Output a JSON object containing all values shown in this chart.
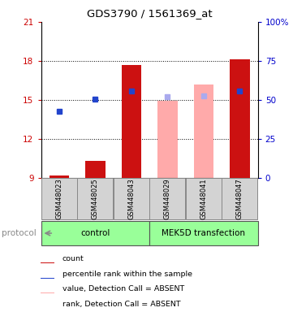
{
  "title": "GDS3790 / 1561369_at",
  "samples": [
    "GSM448023",
    "GSM448025",
    "GSM448043",
    "GSM448029",
    "GSM448041",
    "GSM448047"
  ],
  "group_labels": [
    "control",
    "MEK5D transfection"
  ],
  "ylim_left": [
    9,
    21
  ],
  "ylim_right": [
    0,
    100
  ],
  "yticks_left": [
    9,
    12,
    15,
    18,
    21
  ],
  "yticks_right": [
    0,
    25,
    50,
    75,
    100
  ],
  "ybase": 9,
  "red_bar_values": [
    9.15,
    10.3,
    17.7,
    null,
    null,
    18.1
  ],
  "blue_square_values": [
    14.1,
    15.05,
    15.65,
    null,
    null,
    15.7
  ],
  "pink_bar_values": [
    null,
    null,
    null,
    14.9,
    16.2,
    null
  ],
  "light_blue_square_values": [
    null,
    null,
    null,
    15.25,
    15.3,
    null
  ],
  "red_bar_color": "#cc1111",
  "blue_square_color": "#2244cc",
  "pink_bar_color": "#ffaaaa",
  "light_blue_square_color": "#aaaaee",
  "bar_width": 0.55,
  "label_color_left": "#cc0000",
  "label_color_right": "#0000cc",
  "legend_items": [
    "count",
    "percentile rank within the sample",
    "value, Detection Call = ABSENT",
    "rank, Detection Call = ABSENT"
  ],
  "legend_colors": [
    "#cc1111",
    "#2244cc",
    "#ffaaaa",
    "#aaaaee"
  ],
  "protocol_label": "protocol",
  "group_color": "#99ff99",
  "gray_box_color": "#d3d3d3"
}
